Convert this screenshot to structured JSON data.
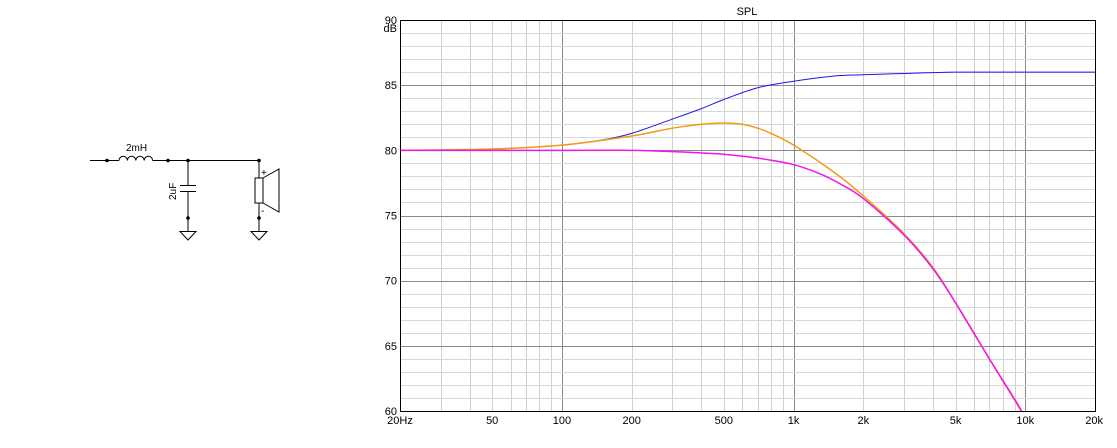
{
  "schematic": {
    "inductor_label": "2mH",
    "capacitor_label": "2uF",
    "plus_label": "+",
    "minus_label": "-"
  },
  "chart_data": {
    "type": "line",
    "title": "SPL",
    "ylabel": "dB",
    "xscale": "log",
    "xlim": [
      20,
      20000
    ],
    "ylim": [
      60,
      90
    ],
    "grid": true,
    "x_tick_labels": [
      {
        "value": 20,
        "label": "20Hz"
      },
      {
        "value": 50,
        "label": "50"
      },
      {
        "value": 100,
        "label": "100"
      },
      {
        "value": 200,
        "label": "200"
      },
      {
        "value": 500,
        "label": "500"
      },
      {
        "value": 1000,
        "label": "1k"
      },
      {
        "value": 2000,
        "label": "2k"
      },
      {
        "value": 5000,
        "label": "5k"
      },
      {
        "value": 10000,
        "label": "10k"
      },
      {
        "value": 20000,
        "label": "20k"
      }
    ],
    "y_tick_labels": [
      {
        "value": 90,
        "label": "90"
      },
      {
        "value": 85,
        "label": "85"
      },
      {
        "value": 80,
        "label": "80"
      },
      {
        "value": 75,
        "label": "75"
      },
      {
        "value": 70,
        "label": "70"
      },
      {
        "value": 65,
        "label": "65"
      },
      {
        "value": 60,
        "label": "60"
      }
    ],
    "series": [
      {
        "color": "#1a1ae6",
        "stroke_width": 1,
        "x": [
          20,
          50,
          100,
          150,
          200,
          300,
          400,
          500,
          700,
          1000,
          1500,
          2000,
          3000,
          5000,
          10000,
          20000
        ],
        "y": [
          80.0,
          80.1,
          80.4,
          80.8,
          81.3,
          82.4,
          83.2,
          83.9,
          84.8,
          85.3,
          85.7,
          85.8,
          85.9,
          86.0,
          86.0,
          86.0
        ]
      },
      {
        "color": "#f29a12",
        "stroke_width": 1.5,
        "x": [
          20,
          50,
          100,
          200,
          300,
          400,
          500,
          600,
          700,
          800,
          1000,
          1500,
          2000,
          3000,
          4000,
          5000,
          7000,
          10000
        ],
        "y": [
          80.0,
          80.1,
          80.4,
          81.1,
          81.7,
          82.0,
          82.1,
          82.0,
          81.7,
          81.3,
          80.4,
          78.3,
          76.5,
          73.6,
          71.0,
          68.3,
          64.0,
          59.5
        ]
      },
      {
        "color": "#ee15ee",
        "stroke_width": 1.5,
        "x": [
          20,
          100,
          200,
          300,
          400,
          500,
          700,
          1000,
          1300,
          1600,
          2000,
          3000,
          4000,
          5000,
          7000,
          9000,
          10000
        ],
        "y": [
          80.0,
          80.0,
          80.0,
          79.9,
          79.8,
          79.7,
          79.4,
          78.9,
          78.2,
          77.4,
          76.3,
          73.5,
          70.9,
          68.3,
          64.0,
          60.9,
          59.5
        ]
      }
    ]
  }
}
